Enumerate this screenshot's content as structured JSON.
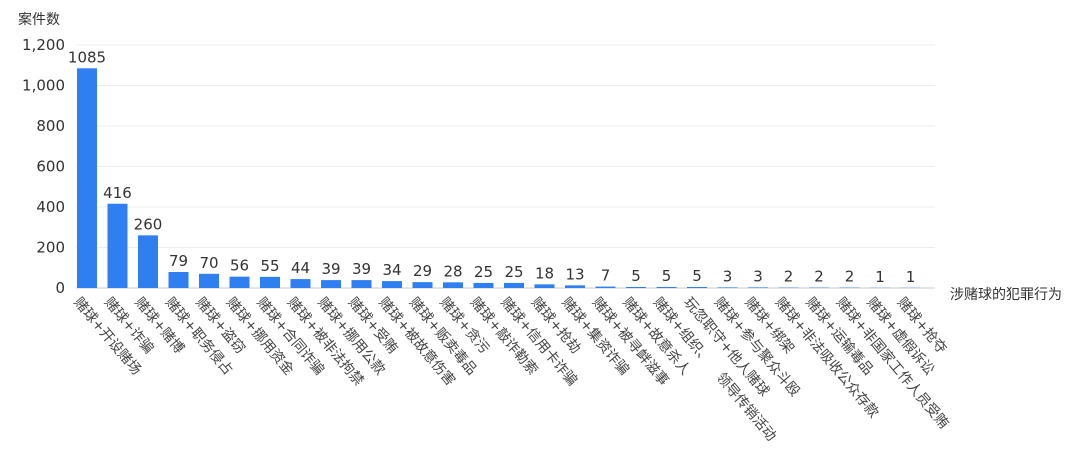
{
  "chart_data": {
    "type": "bar",
    "title": "",
    "ylabel": "案件数",
    "xlabel": "涉赌球的犯罪行为",
    "ylim": [
      0,
      1200
    ],
    "yticks": [
      "0",
      "200",
      "400",
      "600",
      "800",
      "1,000",
      "1,200"
    ],
    "ytick_values": [
      0,
      200,
      400,
      600,
      800,
      1000,
      1200
    ],
    "grid": true,
    "color": "#2f7ff0",
    "categories": [
      [
        "赌球+开设赌场"
      ],
      [
        "赌球+诈骗"
      ],
      [
        "赌球+赌博"
      ],
      [
        "赌球+职务侵占"
      ],
      [
        "赌球+盗窃"
      ],
      [
        "赌球+挪用资金"
      ],
      [
        "赌球+合同诈骗"
      ],
      [
        "赌球+被非法拘禁"
      ],
      [
        "赌球+挪用公款"
      ],
      [
        "赌球+受贿"
      ],
      [
        "赌球+被故意伤害"
      ],
      [
        "赌球+贩卖毒品"
      ],
      [
        "赌球+贪污"
      ],
      [
        "赌球+敲诈勒索"
      ],
      [
        "赌球+信用卡诈骗"
      ],
      [
        "赌球+抢劫"
      ],
      [
        "赌球+集资诈骗"
      ],
      [
        "赌球+被寻衅滋事"
      ],
      [
        "赌球+故意杀人"
      ],
      [
        "赌球+组织、",
        "领导传销活动"
      ],
      [
        "玩忽职守+他人赌球"
      ],
      [
        "赌球+参与聚众斗殴"
      ],
      [
        "赌球+绑架"
      ],
      [
        "赌球+非法吸收公众存款"
      ],
      [
        "赌球+运输毒品"
      ],
      [
        "赌球+非国家工作人员受贿"
      ],
      [
        "赌球+虚假诉讼"
      ],
      [
        "赌球+抢夺"
      ]
    ],
    "values": [
      1085,
      416,
      260,
      79,
      70,
      56,
      55,
      44,
      39,
      39,
      34,
      29,
      28,
      25,
      25,
      18,
      13,
      7,
      5,
      5,
      5,
      3,
      3,
      2,
      2,
      2,
      1,
      1
    ]
  }
}
